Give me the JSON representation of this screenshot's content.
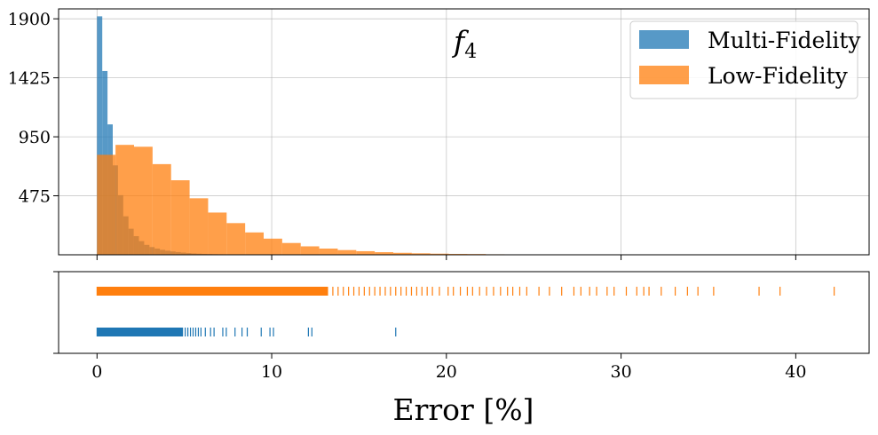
{
  "chart_data": [
    {
      "type": "histogram",
      "annotation": {
        "base": "f",
        "subscript": "4"
      },
      "xlim": [
        -2.2,
        44.2
      ],
      "ylim": [
        0,
        1980
      ],
      "yticks": [
        475,
        950,
        1425,
        1900
      ],
      "xticks": [
        0,
        10,
        20,
        30,
        40
      ],
      "grid": true,
      "legend": {
        "placement": "top-right",
        "entries": [
          "Multi-Fidelity",
          "Low-Fidelity"
        ]
      },
      "series": [
        {
          "name": "Multi-Fidelity",
          "color": "#1f77b4",
          "opacity": 0.75,
          "bin_edges": [
            0,
            0.3,
            0.6,
            0.9,
            1.2,
            1.5,
            1.8,
            2.1,
            2.4,
            2.7,
            3.0,
            3.3,
            3.6,
            3.9,
            4.2,
            4.5,
            4.8,
            5.1,
            5.4,
            5.7,
            6.0,
            6.3,
            6.6,
            6.9,
            7.2,
            7.5,
            7.8,
            8.1,
            8.4,
            8.7,
            9.0,
            17.1
          ],
          "counts": [
            1920,
            1480,
            1050,
            720,
            480,
            310,
            210,
            150,
            110,
            80,
            62,
            50,
            40,
            33,
            27,
            22,
            18,
            14,
            11,
            9,
            7,
            6,
            5,
            4,
            3,
            3,
            2,
            2,
            2,
            1,
            1
          ]
        },
        {
          "name": "Low-Fidelity",
          "color": "#ff7f0e",
          "opacity": 0.75,
          "bin_edges": [
            0,
            1.06,
            2.12,
            3.18,
            4.24,
            5.3,
            6.36,
            7.42,
            8.48,
            9.54,
            10.6,
            11.66,
            12.72,
            13.78,
            14.84,
            15.9,
            16.96,
            18.02,
            19.08,
            20.14,
            21.2,
            22.26,
            23.32,
            24.38,
            25.44,
            26.5,
            27.56,
            28.62,
            29.68,
            30.74,
            31.8,
            32.86,
            33.92,
            34.98,
            36.04,
            37.1,
            38.16,
            39.22,
            40.28,
            41.34,
            42.4
          ],
          "counts": [
            805,
            885,
            870,
            730,
            600,
            455,
            340,
            255,
            180,
            130,
            95,
            68,
            50,
            38,
            29,
            21,
            16,
            12,
            9,
            7,
            6,
            4,
            3,
            3,
            2,
            2,
            1,
            1,
            1,
            1,
            1,
            0,
            1,
            0,
            0,
            0,
            0,
            0,
            0,
            0
          ]
        }
      ]
    },
    {
      "type": "rug",
      "xlim": [
        -2.2,
        44.2
      ],
      "xticks": [
        0,
        10,
        20,
        30,
        40
      ],
      "xlabel": "Error [%]",
      "series": [
        {
          "name": "Low-Fidelity",
          "color": "#ff7f0e",
          "dense_range": [
            0,
            13.2
          ],
          "values": [
            13.5,
            13.8,
            14.1,
            14.4,
            14.7,
            15.0,
            15.3,
            15.6,
            15.9,
            16.2,
            16.5,
            16.8,
            17.1,
            17.4,
            17.7,
            18.0,
            18.3,
            18.6,
            18.9,
            19.2,
            19.6,
            20.1,
            20.4,
            20.8,
            21.2,
            21.5,
            21.9,
            22.3,
            22.7,
            23.1,
            23.5,
            23.8,
            24.2,
            24.6,
            25.3,
            25.9,
            26.6,
            27.3,
            27.7,
            28.2,
            28.6,
            29.2,
            29.6,
            30.3,
            30.9,
            31.3,
            31.6,
            32.3,
            33.1,
            33.8,
            34.4,
            35.3,
            37.9,
            39.1,
            42.2
          ]
        },
        {
          "name": "Multi-Fidelity",
          "color": "#1f77b4",
          "dense_range": [
            0,
            4.9
          ],
          "values": [
            5.05,
            5.2,
            5.35,
            5.5,
            5.65,
            5.8,
            5.95,
            6.2,
            6.5,
            6.7,
            7.2,
            7.4,
            7.9,
            8.3,
            8.6,
            9.4,
            9.9,
            10.1,
            12.1,
            12.3,
            17.1
          ]
        }
      ]
    }
  ]
}
